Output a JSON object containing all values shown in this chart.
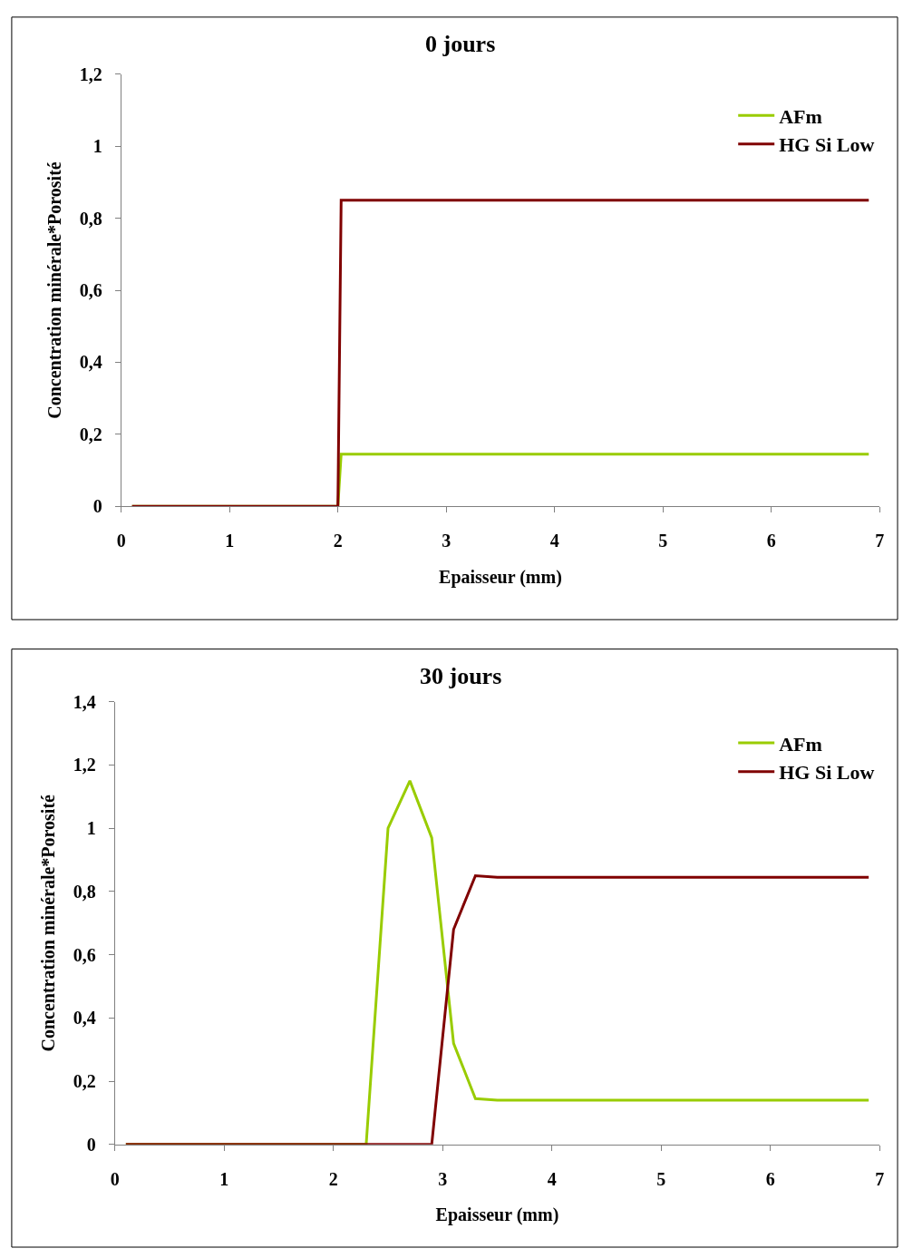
{
  "chart_data": [
    {
      "type": "line",
      "title": "0 jours",
      "xlabel": "Epaisseur (mm)",
      "ylabel": "Concentration minérale*Porosité",
      "xlim": [
        0,
        7
      ],
      "ylim": [
        0,
        1.2
      ],
      "xticks": [
        0,
        1,
        2,
        3,
        4,
        5,
        6,
        7
      ],
      "yticks": [
        0,
        {
          "value": 0.2,
          "label": "0,2"
        },
        {
          "value": 0.4,
          "label": "0,4"
        },
        {
          "value": 0.6,
          "label": "0,6"
        },
        {
          "value": 0.8,
          "label": "0,8"
        },
        1,
        {
          "value": 1.2,
          "label": "1,2"
        }
      ],
      "legend": "top right",
      "marker": "none",
      "line_style": "solid",
      "series": [
        {
          "name": "AFm",
          "color": "#99cc00",
          "x": [
            0.1,
            2.0,
            2.03,
            6.9
          ],
          "values": [
            0,
            0,
            0.145,
            0.145
          ]
        },
        {
          "name": "HG Si Low",
          "color": "#800000",
          "x": [
            0.1,
            2.0,
            2.03,
            6.9
          ],
          "values": [
            0,
            0,
            0.85,
            0.85
          ]
        }
      ]
    },
    {
      "type": "line",
      "title": "30 jours",
      "xlabel": "Epaisseur (mm)",
      "ylabel": "Concentration minérale*Porosité",
      "xlim": [
        0,
        7
      ],
      "ylim": [
        0,
        1.4
      ],
      "xticks": [
        0,
        1,
        2,
        3,
        4,
        5,
        6,
        7
      ],
      "yticks": [
        0,
        {
          "value": 0.2,
          "label": "0,2"
        },
        {
          "value": 0.4,
          "label": "0,4"
        },
        {
          "value": 0.6,
          "label": "0,6"
        },
        {
          "value": 0.8,
          "label": "0,8"
        },
        1,
        {
          "value": 1.2,
          "label": "1,2"
        },
        {
          "value": 1.4,
          "label": "1,4"
        }
      ],
      "legend": "top right",
      "marker": "none",
      "line_style": "solid",
      "series": [
        {
          "name": "AFm",
          "color": "#99cc00",
          "x": [
            0.1,
            2.3,
            2.5,
            2.7,
            2.9,
            3.1,
            3.3,
            3.5,
            6.9
          ],
          "values": [
            0,
            0,
            1.0,
            1.15,
            0.97,
            0.32,
            0.145,
            0.14,
            0.14
          ]
        },
        {
          "name": "HG Si Low",
          "color": "#800000",
          "x": [
            0.1,
            2.9,
            3.1,
            3.3,
            3.5,
            6.9
          ],
          "values": [
            0,
            0,
            0.68,
            0.85,
            0.845,
            0.845
          ]
        }
      ]
    }
  ]
}
